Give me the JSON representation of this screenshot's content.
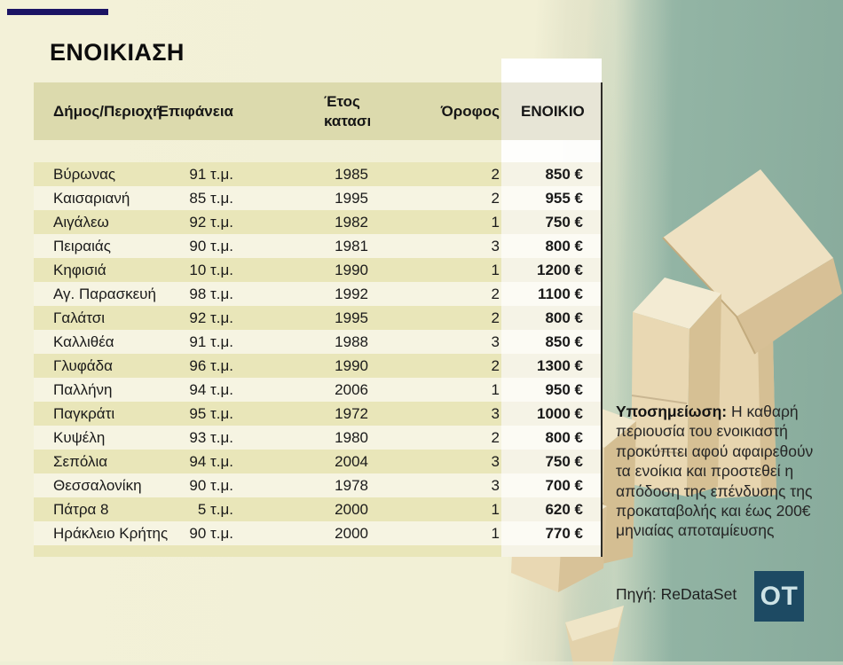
{
  "title": "ΕΝΟΙΚΙΑΣΗ",
  "chart_data": {
    "type": "table",
    "title": "ΕΝΟΙΚΙΑΣΗ",
    "columns": [
      "Δήμος/Περιοχή",
      "Επιφάνεια",
      "Έτος κατασκευής",
      "Όροφος",
      "ΕΝΟΙΚΙΟ"
    ],
    "rows": [
      [
        "Βύρωνας",
        "91 τ.μ.",
        "1985",
        "2",
        "850 €"
      ],
      [
        "Καισαριανή",
        "85 τ.μ.",
        "1995",
        "2",
        "955 €"
      ],
      [
        "Αιγάλεω",
        "92 τ.μ.",
        "1982",
        "1",
        "750 €"
      ],
      [
        "Πειραιάς",
        "90 τ.μ.",
        "1981",
        "3",
        "800 €"
      ],
      [
        "Κηφισιά",
        "10 τ.μ.",
        "1990",
        "1",
        "1200 €"
      ],
      [
        "Αγ. Παρασκευή",
        "98 τ.μ.",
        "1992",
        "2",
        "1100 €"
      ],
      [
        "Γαλάτσι",
        "92 τ.μ.",
        "1995",
        "2",
        "800 €"
      ],
      [
        "Καλλιθέα",
        "91 τ.μ.",
        "1988",
        "3",
        "850 €"
      ],
      [
        "Γλυφάδα",
        "96 τ.μ.",
        "1990",
        "2",
        "1300 €"
      ],
      [
        "Παλλήνη",
        "94 τ.μ.",
        "2006",
        "1",
        "950 €"
      ],
      [
        "Παγκράτι",
        "95 τ.μ.",
        "1972",
        "3",
        "1000 €"
      ],
      [
        "Κυψέλη",
        "93 τ.μ.",
        "1980",
        "2",
        "800 €"
      ],
      [
        "Σεπόλια",
        "94 τ.μ.",
        "2004",
        "3",
        "750 €"
      ],
      [
        "Θεσσαλονίκη",
        "90 τ.μ.",
        "1978",
        "3",
        "700 €"
      ],
      [
        "Πάτρα 8",
        "5 τ.μ.",
        "2000",
        "1",
        "620 €"
      ],
      [
        "Ηράκλειο Κρήτης",
        "90 τ.μ.",
        "2000",
        "1",
        "770 €"
      ]
    ]
  },
  "footnote": {
    "label": "Υποσημείωση:",
    "text": " Η καθαρή περιουσία του ενοικιαστή προκύπτει αφού αφαιρεθούν τα ενοίκια και προστεθεί η απόδοση της επένδυσης της προκαταβολής και έως 200€ μηνιαίας αποταμίευσης"
  },
  "source": {
    "text": "Πηγή: ReDataSet"
  },
  "logo": {
    "text": "OT"
  },
  "colors": {
    "accent": "#1b1464",
    "page_bg": "#f3f1d8",
    "teal_bg": "#92b4a4",
    "stripe": "#e9e6b9",
    "header_bg": "#dcdaad",
    "logo_bg": "#1d4a63",
    "logo_text": "#cde3e6"
  }
}
